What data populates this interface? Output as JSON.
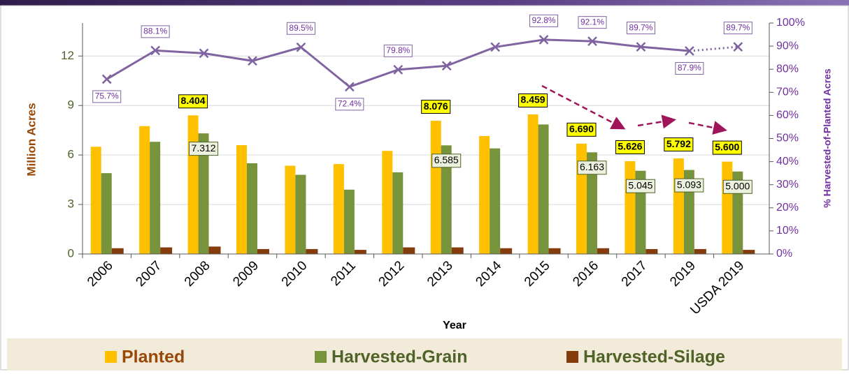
{
  "chart_data": {
    "type": "bar",
    "x_label": "Year",
    "y_label": "Million Acres",
    "y2_label": "% Harvested-of-Planted Acres",
    "categories": [
      "2006",
      "2007",
      "2008",
      "2009",
      "2010",
      "2011",
      "2012",
      "2013",
      "2014",
      "2015",
      "2016",
      "2017",
      "2019",
      "USDA 2019"
    ],
    "ylim": [
      0,
      14
    ],
    "yticks": [
      0,
      3,
      6,
      9,
      12
    ],
    "y2lim": [
      0,
      100
    ],
    "y2ticks": [
      {
        "value": 0,
        "label": "0%"
      },
      {
        "value": 10,
        "label": "10%"
      },
      {
        "value": 20,
        "label": "20%"
      },
      {
        "value": 30,
        "label": "30%"
      },
      {
        "value": 40,
        "label": "40%"
      },
      {
        "value": 50,
        "label": "50%"
      },
      {
        "value": 60,
        "label": "60%"
      },
      {
        "value": 70,
        "label": "70%"
      },
      {
        "value": 80,
        "label": "80%"
      },
      {
        "value": 90,
        "label": "90%"
      },
      {
        "value": 100,
        "label": "100%"
      }
    ],
    "grid": true,
    "legend": "bottom",
    "series": [
      {
        "name": "Planted",
        "color": "#FFC000",
        "values": [
          6.5,
          7.75,
          8.404,
          6.6,
          5.35,
          5.45,
          6.25,
          8.076,
          7.15,
          8.459,
          6.69,
          5.626,
          5.792,
          5.6
        ],
        "value_labels": [
          null,
          null,
          "8.404",
          null,
          null,
          null,
          null,
          "8.076",
          null,
          "8.459",
          "6.690",
          "5.626",
          "5.792",
          "5.600"
        ]
      },
      {
        "name": "Harvested-Grain",
        "color": "#77933C",
        "values": [
          4.9,
          6.8,
          7.312,
          5.5,
          4.8,
          3.9,
          4.95,
          6.585,
          6.4,
          7.85,
          6.163,
          5.045,
          5.093,
          5.0
        ],
        "value_labels": [
          null,
          null,
          "7.312",
          null,
          null,
          null,
          null,
          "6.585",
          null,
          null,
          "6.163",
          "5.045",
          "5.093",
          "5.000"
        ]
      },
      {
        "name": "Harvested-Silage",
        "color": "#843C0C",
        "values": [
          0.35,
          0.4,
          0.45,
          0.3,
          0.3,
          0.25,
          0.4,
          0.4,
          0.35,
          0.35,
          0.35,
          0.3,
          0.3,
          0.25
        ]
      },
      {
        "type": "line",
        "axis": "y2",
        "color": "#8064A2",
        "values": [
          75.7,
          88.1,
          86.9,
          83.6,
          89.5,
          72.4,
          79.8,
          81.5,
          89.6,
          92.8,
          92.1,
          89.7,
          87.9,
          89.7
        ],
        "value_labels": [
          "75.7%",
          "88.1%",
          null,
          null,
          "89.5%",
          "72.4%",
          "79.8%",
          null,
          null,
          "92.8%",
          "92.1%",
          "89.7%",
          "87.9%",
          "89.7%"
        ]
      }
    ]
  }
}
